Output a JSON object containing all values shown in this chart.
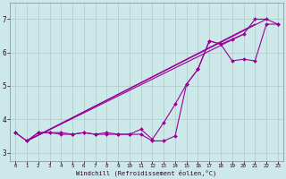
{
  "xlabel": "Windchill (Refroidissement éolien,°C)",
  "background_color": "#cce8e8",
  "line_color": "#990099",
  "grid_color": "#b0c8c8",
  "xlim": [
    -0.5,
    23.5
  ],
  "ylim": [
    2.75,
    7.5
  ],
  "yticks": [
    3,
    4,
    5,
    6,
    7
  ],
  "xticks": [
    0,
    1,
    2,
    3,
    4,
    5,
    6,
    7,
    8,
    9,
    10,
    11,
    12,
    13,
    14,
    15,
    16,
    17,
    18,
    19,
    20,
    21,
    22,
    23
  ],
  "curve1_x": [
    0,
    1,
    2,
    3,
    4,
    5,
    6,
    7,
    8,
    9,
    10,
    11,
    12,
    13,
    14,
    15,
    16,
    17,
    18,
    19,
    20,
    21,
    22,
    23
  ],
  "curve1_y": [
    3.6,
    3.35,
    3.6,
    3.6,
    3.6,
    3.55,
    3.6,
    3.55,
    3.6,
    3.55,
    3.55,
    3.7,
    3.4,
    3.9,
    4.45,
    5.05,
    5.5,
    6.35,
    6.25,
    6.4,
    6.55,
    7.0,
    7.0,
    6.85
  ],
  "reg_lines": [
    {
      "x": [
        1,
        20
      ],
      "y": [
        3.35,
        6.55
      ]
    },
    {
      "x": [
        1,
        21
      ],
      "y": [
        3.35,
        6.85
      ]
    },
    {
      "x": [
        1,
        22
      ],
      "y": [
        3.35,
        7.0
      ]
    }
  ],
  "curve2_x": [
    0,
    1,
    2,
    3,
    4,
    5,
    6,
    7,
    8,
    9,
    10,
    11,
    12,
    13,
    14,
    15,
    16,
    17,
    18,
    19,
    20,
    21,
    22,
    23
  ],
  "curve2_y": [
    3.6,
    3.35,
    3.6,
    3.6,
    3.55,
    3.55,
    3.6,
    3.55,
    3.55,
    3.55,
    3.55,
    3.55,
    3.35,
    3.35,
    3.5,
    5.05,
    5.5,
    6.35,
    6.25,
    5.75,
    5.8,
    5.75,
    6.85,
    6.85
  ]
}
